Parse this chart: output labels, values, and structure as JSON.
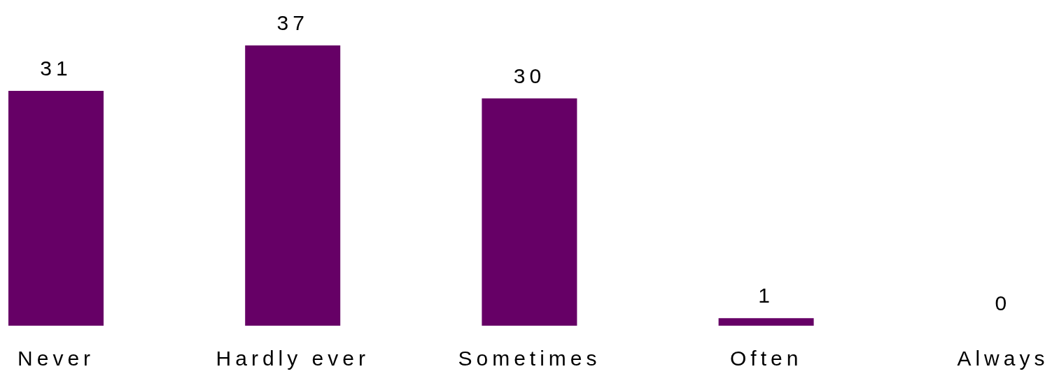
{
  "chart_data": {
    "type": "bar",
    "categories": [
      "Never",
      "Hardly ever",
      "Sometimes",
      "Often",
      "Always"
    ],
    "values": [
      31,
      37,
      30,
      1,
      0
    ],
    "color": "#660066",
    "data_labels": true,
    "grid": false,
    "legend": false
  }
}
